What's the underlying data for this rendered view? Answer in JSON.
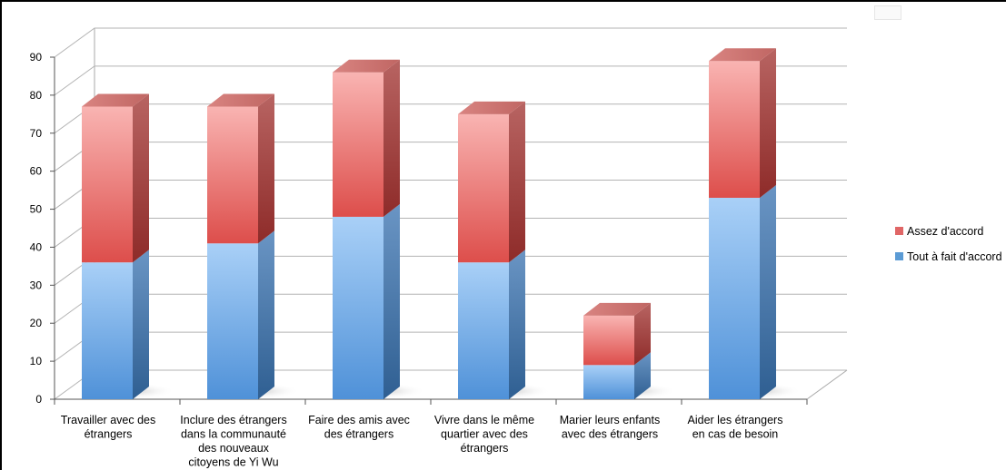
{
  "chart_data": {
    "type": "bar",
    "stacked": true,
    "three_d": true,
    "title": "",
    "xlabel": "",
    "ylabel": "",
    "ylim": [
      0,
      90
    ],
    "yticks": [
      0,
      10,
      20,
      30,
      40,
      50,
      60,
      70,
      80,
      90
    ],
    "grid": true,
    "legend_position": "right",
    "categories": [
      [
        "Travailler avec des",
        "étrangers"
      ],
      [
        "Inclure des étrangers",
        "dans la communauté",
        "des nouveaux",
        "citoyens de Yi Wu"
      ],
      [
        "Faire des amis avec",
        "des étrangers"
      ],
      [
        "Vivre dans le même",
        "quartier avec des",
        "étrangers"
      ],
      [
        "Marier leurs enfants",
        "avec des étrangers"
      ],
      [
        "Aider les étrangers",
        "en cas de besoin"
      ]
    ],
    "series": [
      {
        "name": "Tout à fait d'accord",
        "color": "#5b9bd5",
        "values": [
          36,
          41,
          48,
          36,
          9,
          53
        ]
      },
      {
        "name": "Assez d'accord",
        "color": "#e06666",
        "values": [
          41,
          36,
          38,
          39,
          13,
          36
        ]
      }
    ],
    "legend_order": [
      "Assez d'accord",
      "Tout à fait d'accord"
    ]
  }
}
